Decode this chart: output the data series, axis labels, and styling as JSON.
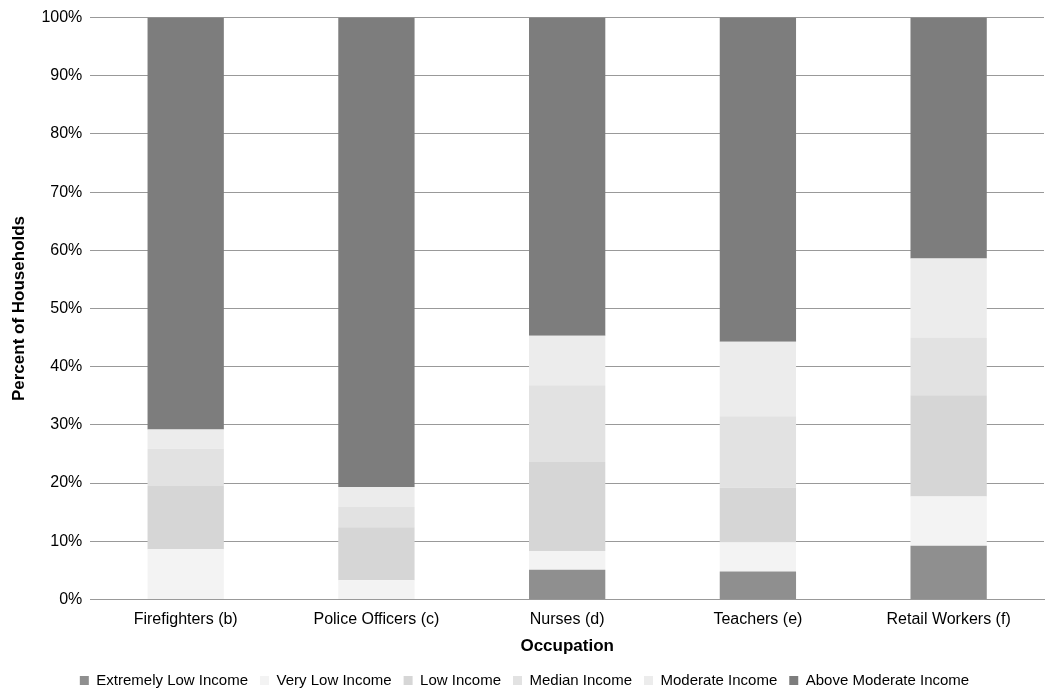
{
  "chart_data": {
    "type": "bar",
    "stacked": true,
    "xlabel": "Occupation",
    "ylabel": "Percent of Households",
    "categories": [
      "Firefighters (b)",
      "Police Officers (c)",
      "Nurses (d)",
      "Teachers (e)",
      "Retail Workers (f)"
    ],
    "series": [
      {
        "name": "Extremely Low Income",
        "color": "#8f8f8f",
        "values": [
          0,
          0,
          5.1,
          4.8,
          9.2
        ]
      },
      {
        "name": "Very Low Income",
        "color": "#f3f3f3",
        "values": [
          8.6,
          3.3,
          3.2,
          5.0,
          8.5
        ]
      },
      {
        "name": "Low Income",
        "color": "#d6d6d6",
        "values": [
          10.9,
          9.1,
          15.3,
          9.4,
          17.4
        ]
      },
      {
        "name": "Median Income",
        "color": "#e2e2e2",
        "values": [
          6.4,
          3.5,
          13.2,
          12.3,
          9.9
        ]
      },
      {
        "name": "Moderate Income",
        "color": "#ececec",
        "values": [
          3.3,
          3.4,
          8.5,
          12.8,
          13.6
        ]
      },
      {
        "name": "Above Moderate Income",
        "color": "#7d7d7d",
        "values": [
          70.8,
          80.7,
          54.7,
          55.7,
          41.4
        ]
      }
    ],
    "ylim": [
      0,
      100
    ],
    "yticks": [
      {
        "value": 0,
        "label": "0%"
      },
      {
        "value": 10,
        "label": "10%"
      },
      {
        "value": 20,
        "label": "20%"
      },
      {
        "value": 30,
        "label": "30%"
      },
      {
        "value": 40,
        "label": "40%"
      },
      {
        "value": 50,
        "label": "50%"
      },
      {
        "value": 60,
        "label": "60%"
      },
      {
        "value": 70,
        "label": "70%"
      },
      {
        "value": 80,
        "label": "80%"
      },
      {
        "value": 90,
        "label": "90%"
      },
      {
        "value": 100,
        "label": "100%"
      }
    ],
    "grid": "y",
    "legend": "bottom"
  }
}
